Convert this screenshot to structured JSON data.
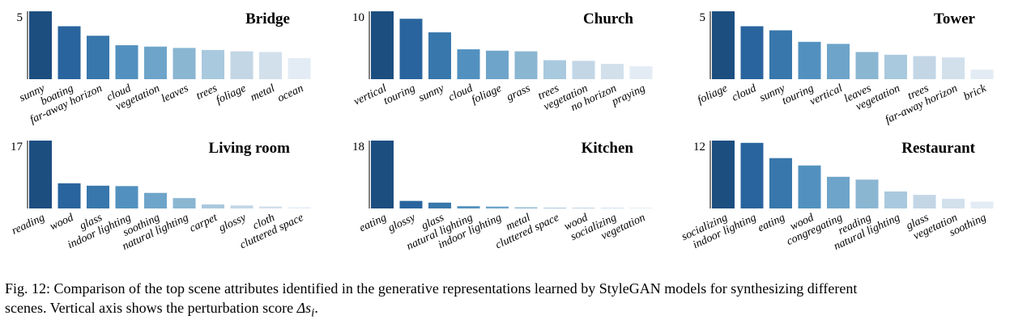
{
  "colors": [
    "#1c4e80",
    "#2a649e",
    "#3877ab",
    "#5291bf",
    "#6ea4c9",
    "#8ab6d2",
    "#a9c9de",
    "#c2d6e6",
    "#d2e0ec",
    "#e3ecf4"
  ],
  "chart_data": [
    {
      "type": "bar",
      "title": "Bridge",
      "ytick": "5",
      "ylim": [
        0,
        5
      ],
      "categories": [
        "sunny",
        "boating",
        "far-away horizon",
        "cloud",
        "vegetation",
        "leaves",
        "trees",
        "foliage",
        "metal",
        "ocean"
      ],
      "values": [
        5.0,
        3.9,
        3.2,
        2.5,
        2.4,
        2.3,
        2.15,
        2.05,
        2.0,
        1.55
      ]
    },
    {
      "type": "bar",
      "title": "Church",
      "ytick": "10",
      "ylim": [
        0,
        10
      ],
      "categories": [
        "vertical",
        "touring",
        "sunny",
        "cloud",
        "foliage",
        "grass",
        "trees",
        "vegetation",
        "no horizon",
        "praying"
      ],
      "values": [
        10.0,
        8.9,
        6.9,
        4.4,
        4.2,
        4.1,
        2.8,
        2.7,
        2.25,
        1.9
      ]
    },
    {
      "type": "bar",
      "title": "Tower",
      "ytick": "5",
      "ylim": [
        0,
        5
      ],
      "categories": [
        "foliage",
        "cloud",
        "sunny",
        "touring",
        "vertical",
        "leaves",
        "vegetation",
        "trees",
        "far-away horizon",
        "brick"
      ],
      "values": [
        5.0,
        3.9,
        3.6,
        2.75,
        2.6,
        2.0,
        1.8,
        1.7,
        1.6,
        0.7
      ]
    },
    {
      "type": "bar",
      "title": "Living room",
      "ytick": "17",
      "ylim": [
        0,
        17
      ],
      "categories": [
        "reading",
        "wood",
        "glass",
        "indoor lighting",
        "soothing",
        "natural lighting",
        "carpet",
        "glossy",
        "cloth",
        "cluttered space"
      ],
      "values": [
        17.0,
        6.3,
        5.7,
        5.6,
        3.9,
        2.6,
        1.0,
        0.75,
        0.5,
        0.3
      ]
    },
    {
      "type": "bar",
      "title": "Kitchen",
      "ytick": "18",
      "ylim": [
        0,
        18
      ],
      "categories": [
        "eating",
        "glossy",
        "glass",
        "natural lighting",
        "indoor lighting",
        "metal",
        "cluttered space",
        "wood",
        "socializing",
        "vegetation"
      ],
      "values": [
        18.0,
        2.0,
        1.55,
        0.6,
        0.5,
        0.3,
        0.2,
        0.15,
        0.12,
        0.1
      ]
    },
    {
      "type": "bar",
      "title": "Restaurant",
      "ytick": "12",
      "ylim": [
        0,
        12
      ],
      "categories": [
        "socializing",
        "indoor lighting",
        "eating",
        "wood",
        "congregating",
        "reading",
        "natural lighting",
        "glass",
        "vegetation",
        "soothing"
      ],
      "values": [
        12.0,
        11.6,
        8.9,
        7.6,
        5.6,
        5.1,
        3.0,
        2.4,
        1.7,
        1.2
      ]
    }
  ],
  "caption": {
    "line1": "Fig. 12: Comparison of the top scene attributes identified in the generative representations learned by StyleGAN models for synthesizing different",
    "line2_text": "scenes. Vertical axis shows the perturbation score ",
    "line2_math": "Δs",
    "line2_sub": "i",
    "line2_end": "."
  }
}
